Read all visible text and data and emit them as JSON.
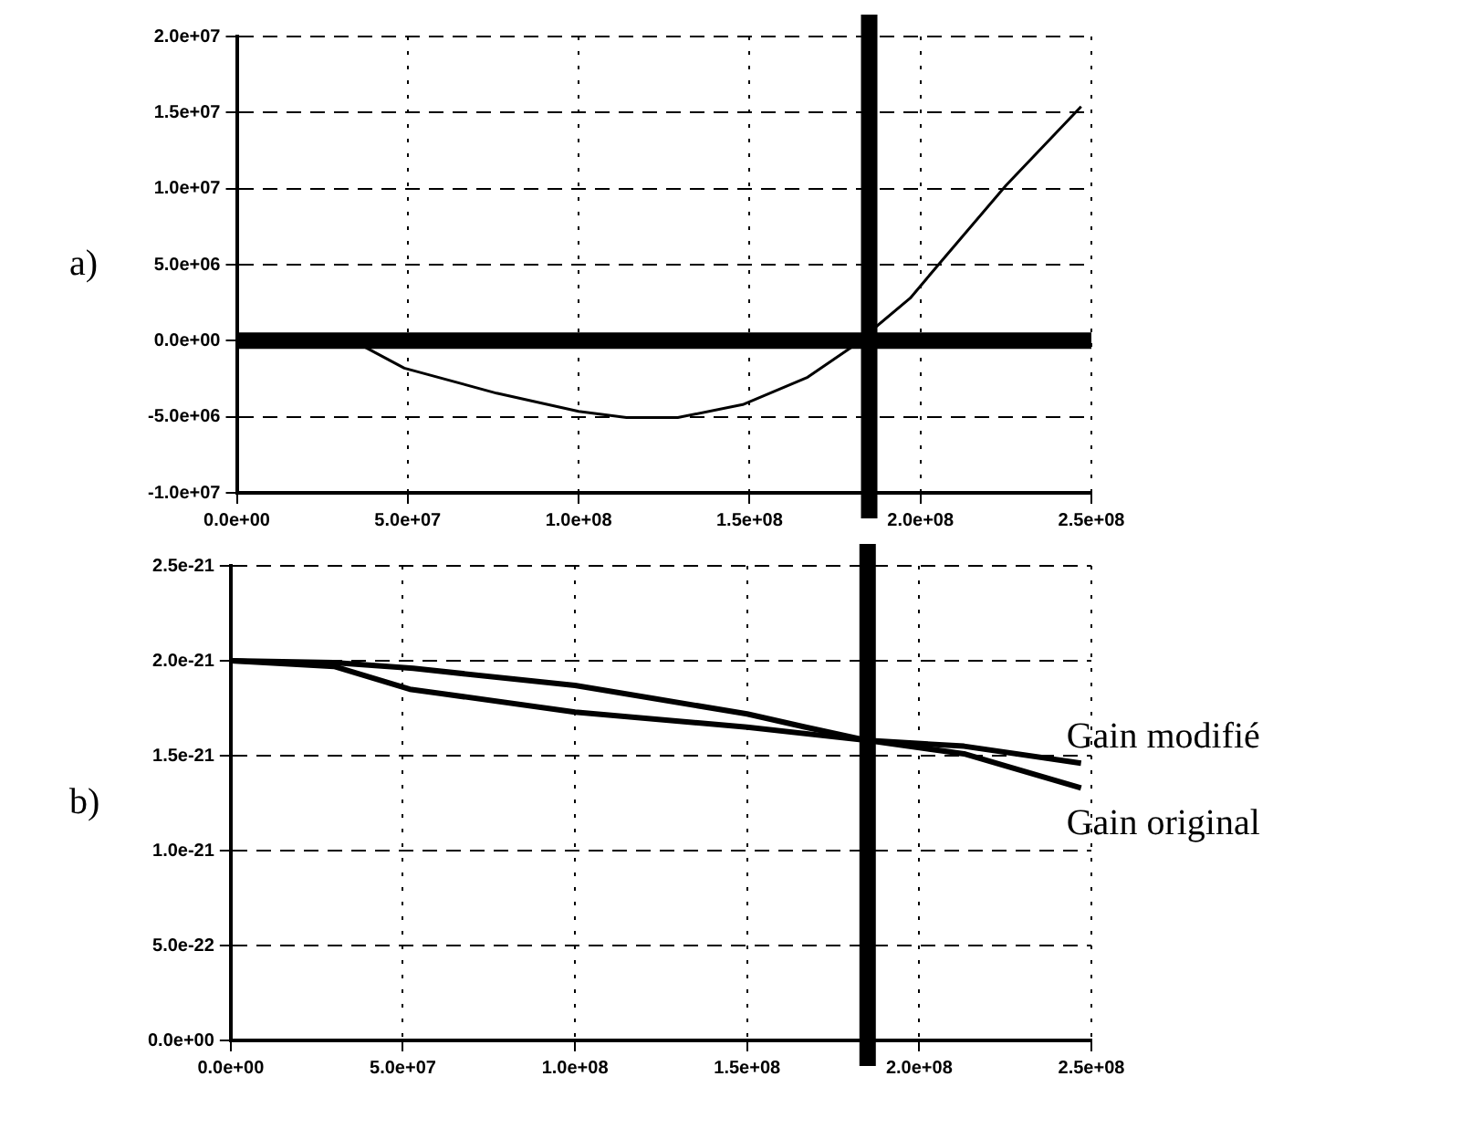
{
  "chart_data": [
    {
      "type": "line",
      "annotations": [
        "a)"
      ],
      "grid": true,
      "legend": false,
      "marker": "none",
      "line_style": "solid",
      "xlim": [
        0,
        250000000
      ],
      "ylim": [
        -10000000,
        20000000
      ],
      "xticks": [
        {
          "value": 0,
          "label": "0.0e+00"
        },
        {
          "value": 50000000,
          "label": "5.0e+07"
        },
        {
          "value": 100000000,
          "label": "1.0e+08"
        },
        {
          "value": 150000000,
          "label": "1.5e+08"
        },
        {
          "value": 200000000,
          "label": "2.0e+08"
        },
        {
          "value": 250000000,
          "label": "2.5e+08"
        }
      ],
      "yticks": [
        {
          "value": -10000000,
          "label": "-1.0e+07"
        },
        {
          "value": -5000000,
          "label": "-5.0e+06"
        },
        {
          "value": 0,
          "label": "0.0e+00"
        },
        {
          "value": 5000000,
          "label": "5.0e+06"
        },
        {
          "value": 10000000,
          "label": "1.0e+07"
        },
        {
          "value": 15000000,
          "label": "1.5e+07"
        },
        {
          "value": 20000000,
          "label": "2.0e+07"
        }
      ],
      "ref_lines": [
        {
          "axis": "x",
          "value": 185000000,
          "color": "#000000"
        },
        {
          "axis": "y",
          "value": 0,
          "color": "#000000"
        }
      ],
      "series": [
        {
          "color": "#000000",
          "x": [
            0,
            34000000,
            49000000,
            76000000,
            100000000,
            114000000,
            129000000,
            148000000,
            167000000,
            180000000,
            197000000,
            206000000,
            225000000,
            247000000
          ],
          "values": [
            0,
            0,
            -1800000,
            -3450000,
            -4650000,
            -5050000,
            -5050000,
            -4200000,
            -2400000,
            -400000,
            2800000,
            5200000,
            10200000,
            15400000
          ]
        }
      ]
    },
    {
      "type": "line",
      "annotations": [
        "b)"
      ],
      "grid": true,
      "legend": false,
      "marker": "none",
      "line_style": "solid",
      "xlim": [
        0,
        250000000
      ],
      "ylim": [
        0,
        2.5e-21
      ],
      "xticks": [
        {
          "value": 0,
          "label": "0.0e+00"
        },
        {
          "value": 50000000,
          "label": "5.0e+07"
        },
        {
          "value": 100000000,
          "label": "1.0e+08"
        },
        {
          "value": 150000000,
          "label": "1.5e+08"
        },
        {
          "value": 200000000,
          "label": "2.0e+08"
        },
        {
          "value": 250000000,
          "label": "2.5e+08"
        }
      ],
      "yticks": [
        {
          "value": 0,
          "label": "0.0e+00"
        },
        {
          "value": 5e-22,
          "label": "5.0e-22"
        },
        {
          "value": 1e-21,
          "label": "1.0e-21"
        },
        {
          "value": 1.5e-21,
          "label": "1.5e-21"
        },
        {
          "value": 2e-21,
          "label": "2.0e-21"
        },
        {
          "value": 2.5e-21,
          "label": "2.5e-21"
        }
      ],
      "ref_lines": [
        {
          "axis": "x",
          "value": 185000000,
          "color": "#000000"
        }
      ],
      "series": [
        {
          "name": "Gain modifié",
          "color": "#000000",
          "x": [
            0,
            30000000,
            52000000,
            100000000,
            150000000,
            185000000,
            213000000,
            247000000
          ],
          "values": [
            2e-21,
            1.97e-21,
            1.85e-21,
            1.73e-21,
            1.65e-21,
            1.58e-21,
            1.55e-21,
            1.46e-21
          ]
        },
        {
          "name": "Gain original",
          "color": "#000000",
          "x": [
            0,
            30000000,
            53000000,
            100000000,
            150000000,
            167000000,
            185000000,
            213000000,
            247000000
          ],
          "values": [
            2e-21,
            1.99e-21,
            1.96e-21,
            1.87e-21,
            1.72e-21,
            1.65e-21,
            1.58e-21,
            1.51e-21,
            1.33e-21
          ]
        }
      ]
    }
  ]
}
